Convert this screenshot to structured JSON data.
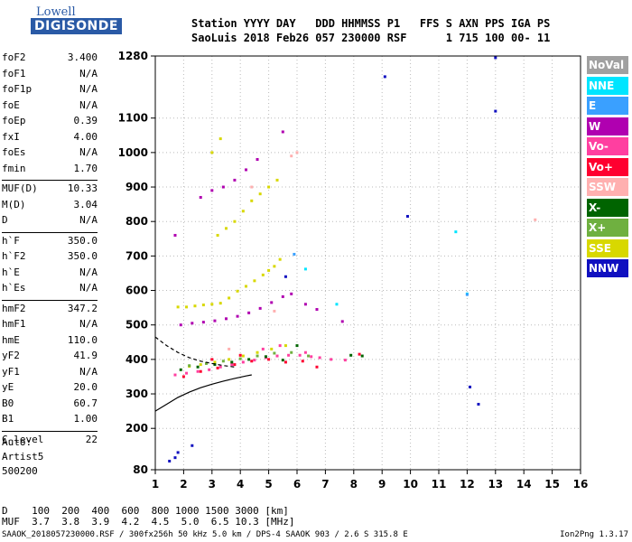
{
  "logo": {
    "line1": "Lowell",
    "line2": "DIGISONDE"
  },
  "header": {
    "line1": "Station YYYY DAY   DDD HHMMSS P1   FFS S AXN PPS IGA PS",
    "line2": "SaoLuis 2018 Feb26 057 230000 RSF      1 715 100 00- 11"
  },
  "params": [
    {
      "k": "foF2",
      "v": "3.400"
    },
    {
      "k": "foF1",
      "v": "N/A"
    },
    {
      "k": "foF1p",
      "v": "N/A"
    },
    {
      "k": "foE",
      "v": "N/A"
    },
    {
      "k": "foEp",
      "v": "0.39"
    },
    {
      "k": "fxI",
      "v": "4.00"
    },
    {
      "k": "foEs",
      "v": "N/A"
    },
    {
      "k": "fmin",
      "v": "1.70"
    },
    {
      "k": "MUF(D)",
      "v": "10.33"
    },
    {
      "k": "M(D)",
      "v": "3.04"
    },
    {
      "k": "D",
      "v": "N/A"
    },
    {
      "k": "h`F",
      "v": "350.0"
    },
    {
      "k": "h`F2",
      "v": "350.0"
    },
    {
      "k": "h`E",
      "v": "N/A"
    },
    {
      "k": "h`Es",
      "v": "N/A"
    },
    {
      "k": "hmF2",
      "v": "347.2"
    },
    {
      "k": "hmF1",
      "v": "N/A"
    },
    {
      "k": "hmE",
      "v": "110.0"
    },
    {
      "k": "yF2",
      "v": "41.9"
    },
    {
      "k": "yF1",
      "v": "N/A"
    },
    {
      "k": "yE",
      "v": "20.0"
    },
    {
      "k": "B0",
      "v": "60.7"
    },
    {
      "k": "B1",
      "v": "1.00"
    },
    {
      "k": "C-level",
      "v": "22"
    }
  ],
  "auto": {
    "l1": "Auto:",
    "l2": "Artist5",
    "l3": "500200"
  },
  "legend": [
    {
      "label": "NoVal",
      "color": "#a0a0a0"
    },
    {
      "label": "NNE",
      "color": "#00e5ff"
    },
    {
      "label": "E",
      "color": "#3aa0ff"
    },
    {
      "label": "W",
      "color": "#b000b0"
    },
    {
      "label": "Vo-",
      "color": "#ff3fa0"
    },
    {
      "label": "Vo+",
      "color": "#ff0030"
    },
    {
      "label": "SSW",
      "color": "#ffb0b0"
    },
    {
      "label": "X-",
      "color": "#006400"
    },
    {
      "label": "X+",
      "color": "#6fb040"
    },
    {
      "label": "SSE",
      "color": "#d8d800"
    },
    {
      "label": "NNW",
      "color": "#1010c0"
    }
  ],
  "footer": {
    "line1": "D    100  200  400  600  800 1000 1500 3000 [km]",
    "line2": "MUF  3.7  3.8  3.9  4.2  4.5  5.0  6.5 10.3 [MHz]",
    "line3": "SAAOK_2018057230000.RSF / 300fx256h 50 kHz 5.0 km / DPS-4 SAAOK 903 / 2.6 S 315.8 E",
    "line4": "Ion2Png 1.3.17"
  },
  "chart_data": {
    "type": "scatter",
    "xlim": [
      1,
      16
    ],
    "ylim": [
      80,
      1280
    ],
    "x_ticks": [
      1,
      2,
      3,
      4,
      5,
      6,
      7,
      8,
      9,
      10,
      11,
      12,
      13,
      14,
      15,
      16
    ],
    "y_ticks": [
      80,
      200,
      300,
      400,
      500,
      600,
      700,
      800,
      900,
      1000,
      1100,
      1280
    ],
    "grid": true,
    "series": [
      {
        "color": "#d8d800",
        "points": [
          [
            1.8,
            552
          ],
          [
            2.1,
            552
          ],
          [
            2.4,
            555
          ],
          [
            2.7,
            558
          ],
          [
            3.0,
            560
          ],
          [
            3.3,
            563
          ],
          [
            3.6,
            578
          ],
          [
            3.9,
            598
          ],
          [
            4.2,
            612
          ],
          [
            4.5,
            628
          ],
          [
            4.8,
            645
          ],
          [
            5.0,
            658
          ],
          [
            5.2,
            670
          ],
          [
            5.4,
            690
          ],
          [
            3.2,
            760
          ],
          [
            3.5,
            780
          ],
          [
            3.8,
            800
          ],
          [
            4.1,
            830
          ],
          [
            4.4,
            860
          ],
          [
            4.7,
            880
          ],
          [
            5.0,
            900
          ],
          [
            5.3,
            920
          ],
          [
            3.0,
            1000
          ],
          [
            3.3,
            1040
          ],
          [
            2.2,
            380
          ],
          [
            2.6,
            385
          ],
          [
            3.1,
            392
          ],
          [
            3.6,
            400
          ],
          [
            4.1,
            410
          ],
          [
            4.6,
            420
          ],
          [
            5.1,
            430
          ],
          [
            5.6,
            440
          ]
        ]
      },
      {
        "color": "#b000b0",
        "points": [
          [
            1.9,
            500
          ],
          [
            2.3,
            505
          ],
          [
            2.7,
            508
          ],
          [
            3.1,
            512
          ],
          [
            3.5,
            518
          ],
          [
            3.9,
            525
          ],
          [
            4.3,
            535
          ],
          [
            4.7,
            548
          ],
          [
            5.1,
            565
          ],
          [
            5.5,
            582
          ],
          [
            5.8,
            590
          ],
          [
            6.3,
            560
          ],
          [
            6.7,
            545
          ],
          [
            7.6,
            510
          ],
          [
            2.6,
            870
          ],
          [
            3.0,
            890
          ],
          [
            3.4,
            900
          ],
          [
            3.8,
            920
          ],
          [
            4.2,
            950
          ],
          [
            4.6,
            980
          ],
          [
            5.5,
            1060
          ],
          [
            1.7,
            760
          ]
        ]
      },
      {
        "color": "#ff3fa0",
        "points": [
          [
            1.7,
            355
          ],
          [
            2.1,
            360
          ],
          [
            2.5,
            365
          ],
          [
            2.9,
            370
          ],
          [
            3.3,
            378
          ],
          [
            3.7,
            385
          ],
          [
            4.1,
            392
          ],
          [
            4.5,
            398
          ],
          [
            4.9,
            405
          ],
          [
            5.3,
            410
          ],
          [
            5.7,
            412
          ],
          [
            6.1,
            412
          ],
          [
            6.5,
            408
          ],
          [
            6.8,
            405
          ],
          [
            7.2,
            400
          ],
          [
            7.7,
            398
          ],
          [
            4.8,
            430
          ],
          [
            5.4,
            440
          ],
          [
            6.3,
            420
          ]
        ]
      },
      {
        "color": "#ff0030",
        "points": [
          [
            2.0,
            350
          ],
          [
            2.6,
            365
          ],
          [
            3.2,
            375
          ],
          [
            3.8,
            385
          ],
          [
            4.4,
            395
          ],
          [
            5.0,
            400
          ],
          [
            5.6,
            392
          ],
          [
            6.2,
            395
          ],
          [
            6.7,
            378
          ],
          [
            8.2,
            415
          ],
          [
            4.0,
            412
          ],
          [
            3.0,
            400
          ]
        ]
      },
      {
        "color": "#006400",
        "points": [
          [
            1.9,
            370
          ],
          [
            2.5,
            378
          ],
          [
            3.1,
            385
          ],
          [
            3.7,
            392
          ],
          [
            4.3,
            400
          ],
          [
            4.9,
            408
          ],
          [
            5.5,
            398
          ],
          [
            7.9,
            412
          ],
          [
            8.3,
            410
          ],
          [
            6.0,
            440
          ]
        ]
      },
      {
        "color": "#6fb040",
        "points": [
          [
            2.2,
            382
          ],
          [
            2.8,
            388
          ],
          [
            3.4,
            395
          ],
          [
            4.0,
            402
          ],
          [
            4.6,
            410
          ],
          [
            5.2,
            418
          ],
          [
            5.8,
            420
          ],
          [
            6.4,
            410
          ]
        ]
      },
      {
        "color": "#1010c0",
        "points": [
          [
            1.7,
            115
          ],
          [
            1.8,
            130
          ],
          [
            1.5,
            105
          ],
          [
            2.3,
            150
          ],
          [
            9.1,
            1220
          ],
          [
            9.9,
            815
          ],
          [
            12.1,
            320
          ],
          [
            12.4,
            270
          ],
          [
            13.0,
            1275
          ],
          [
            13.0,
            1120
          ],
          [
            5.6,
            640
          ]
        ]
      },
      {
        "color": "#ffb0b0",
        "points": [
          [
            3.6,
            430
          ],
          [
            4.4,
            900
          ],
          [
            5.8,
            990
          ],
          [
            6.0,
            1000
          ],
          [
            14.4,
            805
          ],
          [
            5.2,
            540
          ]
        ]
      },
      {
        "color": "#00e5ff",
        "points": [
          [
            6.3,
            662
          ],
          [
            7.4,
            560
          ],
          [
            12.0,
            590
          ],
          [
            11.6,
            770
          ]
        ]
      },
      {
        "color": "#3aa0ff",
        "points": [
          [
            12.0,
            588
          ],
          [
            5.9,
            705
          ]
        ]
      }
    ],
    "curves": [
      {
        "color": "#000000",
        "dash": false,
        "points": [
          [
            1.0,
            250
          ],
          [
            1.4,
            270
          ],
          [
            1.8,
            290
          ],
          [
            2.2,
            305
          ],
          [
            2.6,
            318
          ],
          [
            3.0,
            328
          ],
          [
            3.4,
            337
          ],
          [
            3.8,
            345
          ],
          [
            4.2,
            352
          ],
          [
            4.4,
            355
          ]
        ]
      },
      {
        "color": "#000000",
        "dash": true,
        "points": [
          [
            1.0,
            465
          ],
          [
            1.4,
            440
          ],
          [
            1.8,
            420
          ],
          [
            2.2,
            405
          ],
          [
            2.6,
            395
          ],
          [
            3.0,
            388
          ],
          [
            3.4,
            382
          ],
          [
            3.8,
            378
          ]
        ]
      }
    ]
  }
}
